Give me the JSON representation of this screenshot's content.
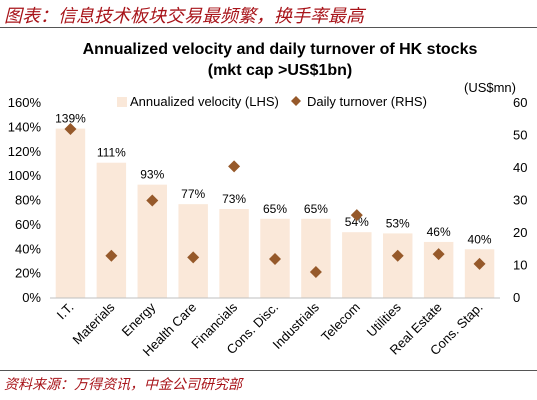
{
  "figure": {
    "caption": "图表：信息技术板块交易最频繁，换手率最高",
    "source": "资料来源：万得资讯，中金公司研究部"
  },
  "chart_data": {
    "type": "bar",
    "title": "Annualized velocity and daily turnover of HK stocks",
    "subtitle": "(mkt cap >US$1bn)",
    "categories": [
      "I.T.",
      "Materials",
      "Energy",
      "Health Care",
      "Financials",
      "Cons. Disc.",
      "Industrials",
      "Telecom",
      "Utilities",
      "Real Estate",
      "Cons. Stap."
    ],
    "series": [
      {
        "name": "Annualized velocity (LHS)",
        "type": "bar",
        "axis": "left",
        "color": "#fae8d9",
        "values": [
          139,
          111,
          93,
          77,
          73,
          65,
          65,
          54,
          53,
          46,
          40
        ],
        "labels": [
          "139%",
          "111%",
          "93%",
          "77%",
          "73%",
          "65%",
          "65%",
          "54%",
          "53%",
          "46%",
          "40%"
        ]
      },
      {
        "name": "Daily turnover (RHS)",
        "type": "scatter",
        "axis": "right",
        "color": "#96592a",
        "marker": "diamond",
        "values": [
          52,
          13,
          30,
          12.5,
          40.5,
          12,
          8,
          25.5,
          13,
          13.5,
          10.5
        ]
      }
    ],
    "y_left": {
      "ylim": [
        0,
        160
      ],
      "ticks": [
        "0%",
        "20%",
        "40%",
        "60%",
        "80%",
        "100%",
        "120%",
        "140%",
        "160%"
      ]
    },
    "y_right": {
      "label": "(US$mn)",
      "ylim": [
        0,
        60
      ],
      "ticks": [
        "0",
        "10",
        "20",
        "30",
        "40",
        "50",
        "60"
      ]
    },
    "grid": false,
    "legend": "top"
  }
}
